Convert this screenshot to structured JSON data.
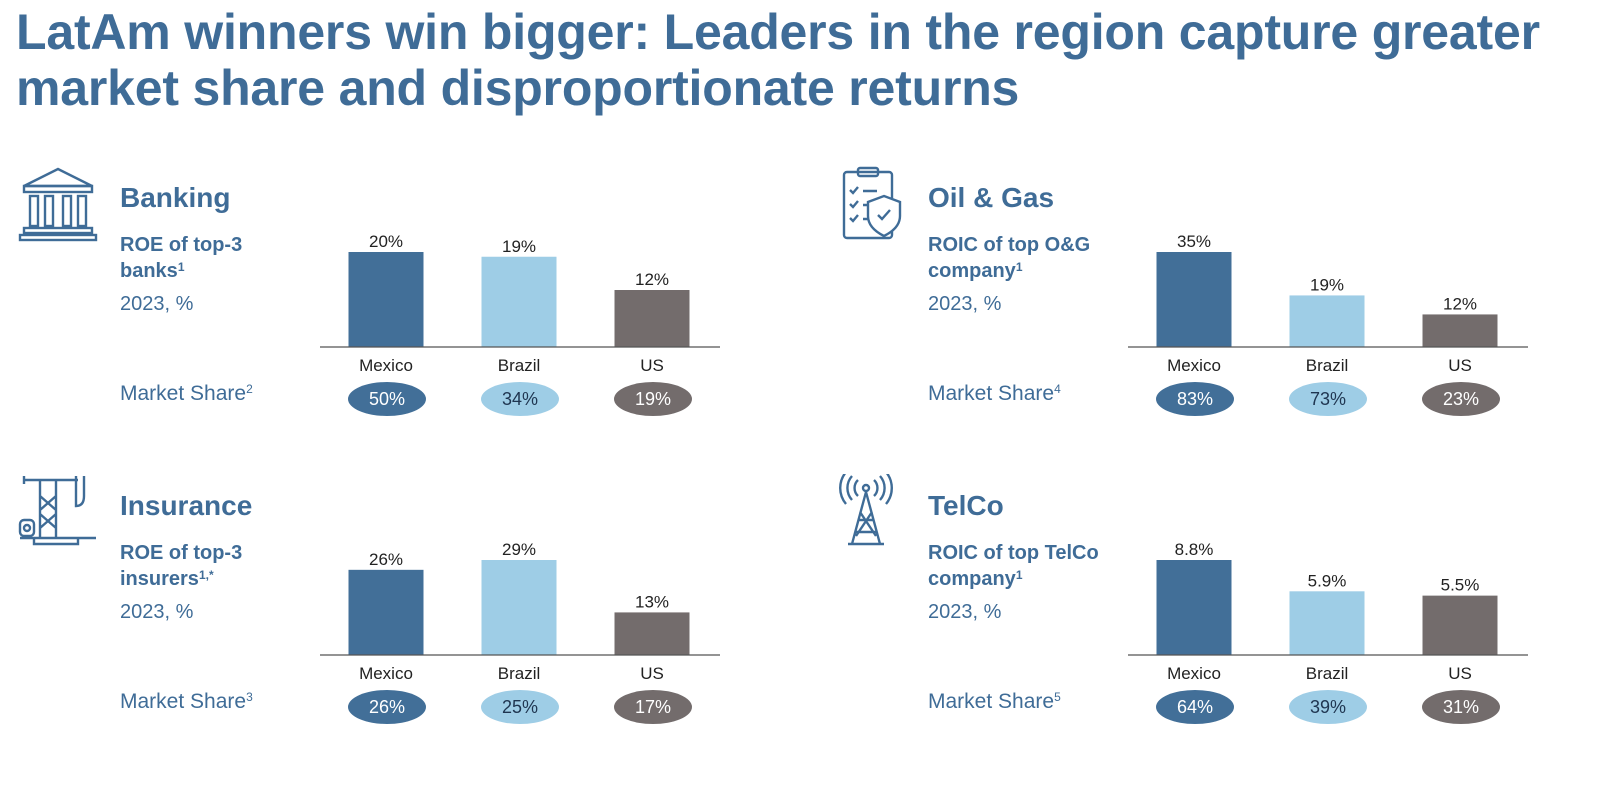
{
  "headline": "LatAm winners win bigger: Leaders in the region capture greater market share and disproportionate returns",
  "colors": {
    "mexico": "#426f98",
    "brazil": "#9ecde6",
    "us": "#736c6c",
    "title": "#3f6c97"
  },
  "panels": [
    {
      "id": "banking",
      "icon": "bank-building-icon",
      "title": "Banking",
      "metric_label": "ROE of top-3 banks",
      "metric_sup": "1",
      "metric_unit": "2023, %",
      "share_label": "Market Share",
      "share_sup": "2",
      "shares": [
        "50%",
        "34%",
        "19%"
      ]
    },
    {
      "id": "oil-gas",
      "icon": "clipboard-shield-icon",
      "title": "Oil & Gas",
      "metric_label": "ROIC of top O&G company",
      "metric_sup": "1",
      "metric_unit": "2023, %",
      "share_label": "Market Share",
      "share_sup": "4",
      "shares": [
        "83%",
        "73%",
        "23%"
      ]
    },
    {
      "id": "insurance",
      "icon": "oil-pump-icon",
      "title": "Insurance",
      "metric_label": "ROE of top-3 insurers",
      "metric_sup": "1,*",
      "metric_unit": "2023, %",
      "share_label": "Market Share",
      "share_sup": "3",
      "shares": [
        "26%",
        "25%",
        "17%"
      ]
    },
    {
      "id": "telco",
      "icon": "radio-tower-icon",
      "title": "TelCo",
      "metric_label": "ROIC of top TelCo company",
      "metric_sup": "1",
      "metric_unit": "2023, %",
      "share_label": "Market Share",
      "share_sup": "5",
      "shares": [
        "64%",
        "39%",
        "31%"
      ]
    }
  ],
  "chart_data": [
    {
      "type": "bar",
      "title": "Banking",
      "ylabel": "ROE of top-3 banks, 2023, %",
      "categories": [
        "Mexico",
        "Brazil",
        "US"
      ],
      "values": [
        20,
        19,
        12
      ],
      "value_labels": [
        "20%",
        "19%",
        "12%"
      ]
    },
    {
      "type": "bar",
      "title": "Oil & Gas",
      "ylabel": "ROIC of top O&G company, 2023, %",
      "categories": [
        "Mexico",
        "Brazil",
        "US"
      ],
      "values": [
        35,
        19,
        12
      ],
      "value_labels": [
        "35%",
        "19%",
        "12%"
      ]
    },
    {
      "type": "bar",
      "title": "Insurance",
      "ylabel": "ROE of top-3 insurers, 2023, %",
      "categories": [
        "Mexico",
        "Brazil",
        "US"
      ],
      "values": [
        26,
        29,
        13
      ],
      "value_labels": [
        "26%",
        "29%",
        "13%"
      ]
    },
    {
      "type": "bar",
      "title": "TelCo",
      "ylabel": "ROIC of top TelCo company, 2023, %",
      "categories": [
        "Mexico",
        "Brazil",
        "US"
      ],
      "values": [
        8.8,
        5.9,
        5.5
      ],
      "value_labels": [
        "8.8%",
        "5.9%",
        "5.5%"
      ]
    }
  ]
}
